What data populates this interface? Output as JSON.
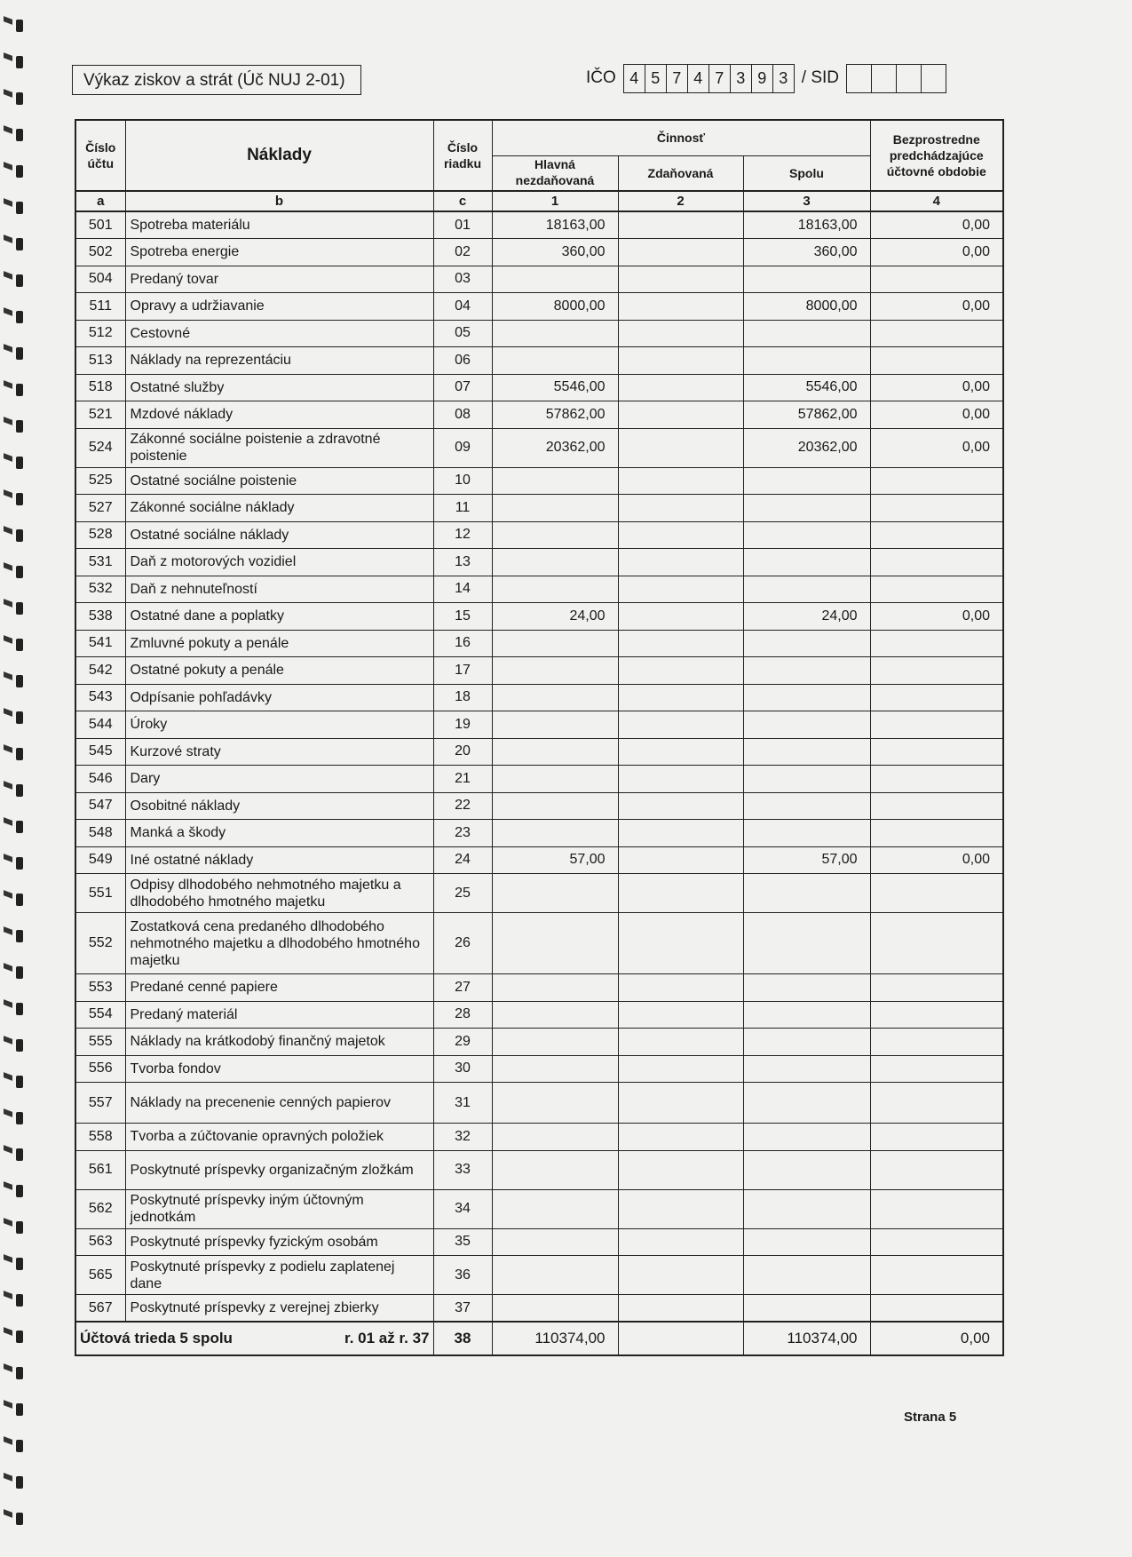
{
  "header": {
    "title": "Výkaz ziskov a strát (Úč NUJ 2-01)",
    "ico_label": "IČO",
    "ico_digits": [
      "4",
      "5",
      "7",
      "4",
      "7",
      "3",
      "9",
      "3"
    ],
    "sid_label": "/ SID",
    "sid_digits": [
      "",
      "",
      "",
      ""
    ]
  },
  "table": {
    "headers": {
      "cislo_uctu": "Číslo účtu",
      "naklady": "Náklady",
      "cislo_riadku": "Číslo riadku",
      "cinnost": "Činnosť",
      "hlavna": "Hlavná nezdaňovaná",
      "zdanovana": "Zdaňovaná",
      "spolu": "Spolu",
      "predch": "Bezprostredne predchádzajúce účtovné obdobie"
    },
    "col_labels": [
      "a",
      "b",
      "c",
      "1",
      "2",
      "3",
      "4"
    ],
    "rows": [
      {
        "ucet": "501",
        "nazov": "Spotreba materiálu",
        "riadok": "01",
        "c1": "18163,00",
        "c2": "",
        "c3": "18163,00",
        "c4": "0,00"
      },
      {
        "ucet": "502",
        "nazov": "Spotreba energie",
        "riadok": "02",
        "c1": "360,00",
        "c2": "",
        "c3": "360,00",
        "c4": "0,00"
      },
      {
        "ucet": "504",
        "nazov": "Predaný tovar",
        "riadok": "03",
        "c1": "",
        "c2": "",
        "c3": "",
        "c4": ""
      },
      {
        "ucet": "511",
        "nazov": "Opravy a udržiavanie",
        "riadok": "04",
        "c1": "8000,00",
        "c2": "",
        "c3": "8000,00",
        "c4": "0,00"
      },
      {
        "ucet": "512",
        "nazov": "Cestovné",
        "riadok": "05",
        "c1": "",
        "c2": "",
        "c3": "",
        "c4": ""
      },
      {
        "ucet": "513",
        "nazov": "Náklady na reprezentáciu",
        "riadok": "06",
        "c1": "",
        "c2": "",
        "c3": "",
        "c4": ""
      },
      {
        "ucet": "518",
        "nazov": "Ostatné služby",
        "riadok": "07",
        "c1": "5546,00",
        "c2": "",
        "c3": "5546,00",
        "c4": "0,00"
      },
      {
        "ucet": "521",
        "nazov": "Mzdové náklady",
        "riadok": "08",
        "c1": "57862,00",
        "c2": "",
        "c3": "57862,00",
        "c4": "0,00"
      },
      {
        "ucet": "524",
        "nazov": "Zákonné sociálne poistenie a zdravotné poistenie",
        "riadok": "09",
        "c1": "20362,00",
        "c2": "",
        "c3": "20362,00",
        "c4": "0,00"
      },
      {
        "ucet": "525",
        "nazov": "Ostatné sociálne poistenie",
        "riadok": "10",
        "c1": "",
        "c2": "",
        "c3": "",
        "c4": ""
      },
      {
        "ucet": "527",
        "nazov": "Zákonné sociálne náklady",
        "riadok": "11",
        "c1": "",
        "c2": "",
        "c3": "",
        "c4": ""
      },
      {
        "ucet": "528",
        "nazov": "Ostatné sociálne náklady",
        "riadok": "12",
        "c1": "",
        "c2": "",
        "c3": "",
        "c4": ""
      },
      {
        "ucet": "531",
        "nazov": "Daň z motorových vozidiel",
        "riadok": "13",
        "c1": "",
        "c2": "",
        "c3": "",
        "c4": ""
      },
      {
        "ucet": "532",
        "nazov": "Daň z nehnuteľností",
        "riadok": "14",
        "c1": "",
        "c2": "",
        "c3": "",
        "c4": ""
      },
      {
        "ucet": "538",
        "nazov": "Ostatné dane a poplatky",
        "riadok": "15",
        "c1": "24,00",
        "c2": "",
        "c3": "24,00",
        "c4": "0,00"
      },
      {
        "ucet": "541",
        "nazov": "Zmluvné pokuty a penále",
        "riadok": "16",
        "c1": "",
        "c2": "",
        "c3": "",
        "c4": ""
      },
      {
        "ucet": "542",
        "nazov": "Ostatné pokuty a penále",
        "riadok": "17",
        "c1": "",
        "c2": "",
        "c3": "",
        "c4": ""
      },
      {
        "ucet": "543",
        "nazov": "Odpísanie pohľadávky",
        "riadok": "18",
        "c1": "",
        "c2": "",
        "c3": "",
        "c4": ""
      },
      {
        "ucet": "544",
        "nazov": "Úroky",
        "riadok": "19",
        "c1": "",
        "c2": "",
        "c3": "",
        "c4": ""
      },
      {
        "ucet": "545",
        "nazov": "Kurzové straty",
        "riadok": "20",
        "c1": "",
        "c2": "",
        "c3": "",
        "c4": ""
      },
      {
        "ucet": "546",
        "nazov": "Dary",
        "riadok": "21",
        "c1": "",
        "c2": "",
        "c3": "",
        "c4": ""
      },
      {
        "ucet": "547",
        "nazov": "Osobitné náklady",
        "riadok": "22",
        "c1": "",
        "c2": "",
        "c3": "",
        "c4": ""
      },
      {
        "ucet": "548",
        "nazov": "Manká a škody",
        "riadok": "23",
        "c1": "",
        "c2": "",
        "c3": "",
        "c4": ""
      },
      {
        "ucet": "549",
        "nazov": "Iné ostatné náklady",
        "riadok": "24",
        "c1": "57,00",
        "c2": "",
        "c3": "57,00",
        "c4": "0,00"
      },
      {
        "ucet": "551",
        "nazov": "Odpisy dlhodobého nehmotného majetku a dlhodobého hmotného majetku",
        "riadok": "25",
        "c1": "",
        "c2": "",
        "c3": "",
        "c4": ""
      },
      {
        "ucet": "552",
        "nazov": "Zostatková cena predaného dlhodobého nehmotného majetku a dlhodobého hmotného majetku",
        "riadok": "26",
        "c1": "",
        "c2": "",
        "c3": "",
        "c4": ""
      },
      {
        "ucet": "553",
        "nazov": "Predané cenné papiere",
        "riadok": "27",
        "c1": "",
        "c2": "",
        "c3": "",
        "c4": ""
      },
      {
        "ucet": "554",
        "nazov": "Predaný materiál",
        "riadok": "28",
        "c1": "",
        "c2": "",
        "c3": "",
        "c4": ""
      },
      {
        "ucet": "555",
        "nazov": "Náklady na krátkodobý finančný majetok",
        "riadok": "29",
        "c1": "",
        "c2": "",
        "c3": "",
        "c4": ""
      },
      {
        "ucet": "556",
        "nazov": "Tvorba fondov",
        "riadok": "30",
        "c1": "",
        "c2": "",
        "c3": "",
        "c4": ""
      },
      {
        "ucet": "557",
        "nazov": "Náklady na precenenie cenných papierov",
        "riadok": "31",
        "c1": "",
        "c2": "",
        "c3": "",
        "c4": ""
      },
      {
        "ucet": "558",
        "nazov": "Tvorba a zúčtovanie opravných položiek",
        "riadok": "32",
        "c1": "",
        "c2": "",
        "c3": "",
        "c4": ""
      },
      {
        "ucet": "561",
        "nazov": "Poskytnuté príspevky organizačným zložkám",
        "riadok": "33",
        "c1": "",
        "c2": "",
        "c3": "",
        "c4": ""
      },
      {
        "ucet": "562",
        "nazov": "Poskytnuté príspevky iným účtovným jednotkám",
        "riadok": "34",
        "c1": "",
        "c2": "",
        "c3": "",
        "c4": ""
      },
      {
        "ucet": "563",
        "nazov": "Poskytnuté príspevky fyzickým osobám",
        "riadok": "35",
        "c1": "",
        "c2": "",
        "c3": "",
        "c4": ""
      },
      {
        "ucet": "565",
        "nazov": "Poskytnuté príspevky z podielu zaplatenej dane",
        "riadok": "36",
        "c1": "",
        "c2": "",
        "c3": "",
        "c4": ""
      },
      {
        "ucet": "567",
        "nazov": "Poskytnuté príspevky z verejnej zbierky",
        "riadok": "37",
        "c1": "",
        "c2": "",
        "c3": "",
        "c4": ""
      }
    ],
    "total": {
      "label": "Účtová trieda 5 spolu",
      "range": "r. 01 až r. 37",
      "riadok": "38",
      "c1": "110374,00",
      "c2": "",
      "c3": "110374,00",
      "c4": "0,00"
    }
  },
  "footer": {
    "page": "Strana 5"
  }
}
